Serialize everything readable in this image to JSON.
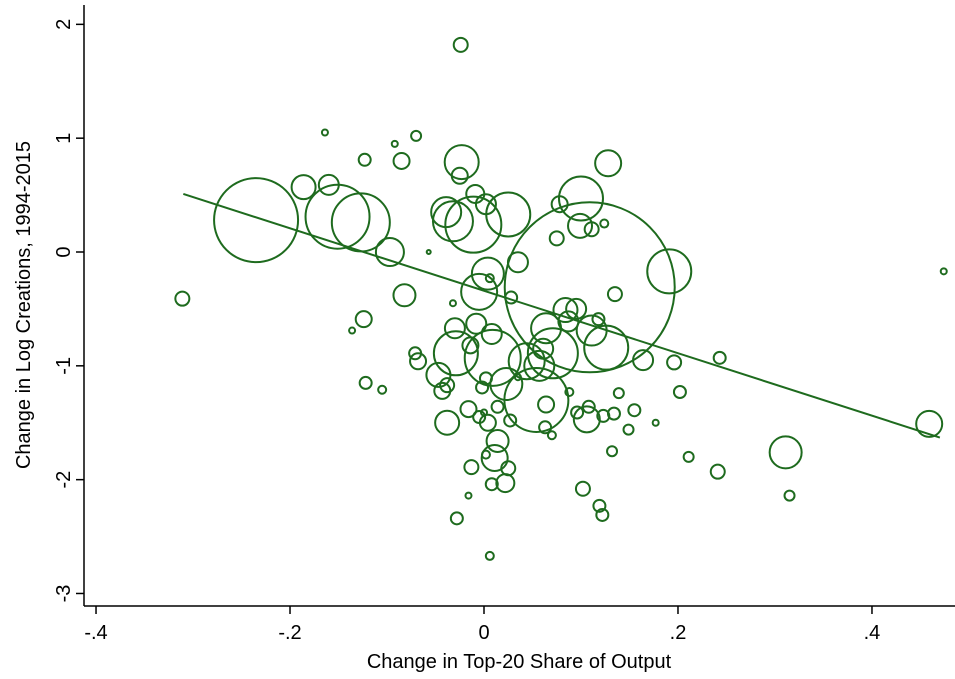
{
  "chart_data": {
    "type": "scatter",
    "xlabel": "Change in Top-20 Share of Output",
    "ylabel": "Change in Log Creations, 1994-2015",
    "color": "#1e6b1e",
    "xlim": [
      -0.4124,
      0.4856
    ],
    "ylim": [
      -3.11,
      2.17
    ],
    "xticks": [
      {
        "value": -0.4,
        "label": "-.4"
      },
      {
        "value": -0.2,
        "label": "-.2"
      },
      {
        "value": 0,
        "label": "0"
      },
      {
        "value": 0.2,
        "label": ".2"
      },
      {
        "value": 0.4,
        "label": ".4"
      }
    ],
    "yticks": [
      -3,
      -2,
      -1,
      0,
      1,
      2
    ],
    "fit": {
      "x": [
        -0.31,
        0.47
      ],
      "y": [
        0.51,
        -1.63
      ]
    },
    "x": [
      -0.024,
      -0.164,
      -0.07,
      -0.092,
      -0.123,
      -0.085,
      -0.023,
      0.128,
      -0.025,
      -0.186,
      -0.16,
      -0.235,
      -0.151,
      -0.127,
      -0.097,
      -0.039,
      -0.011,
      -0.032,
      0.002,
      0.025,
      -0.009,
      0.1,
      0.078,
      0.099,
      0.111,
      0.124,
      0.075,
      0.035,
      -0.057,
      -0.311,
      -0.082,
      -0.005,
      0.004,
      0.006,
      0.028,
      0.109,
      0.191,
      0.135,
      0.474,
      -0.124,
      -0.136,
      -0.032,
      -0.03,
      -0.008,
      0.008,
      -0.029,
      -0.014,
      0.009,
      -0.071,
      -0.068,
      0.061,
      0.064,
      0.057,
      0.044,
      0.071,
      0.084,
      0.095,
      0.111,
      0.126,
      0.087,
      0.118,
      0.164,
      0.196,
      0.243,
      -0.122,
      -0.105,
      -0.047,
      -0.043,
      -0.038,
      -0.002,
      0.002,
      0.023,
      0.054,
      0.035,
      0.064,
      0.088,
      -0.038,
      -0.016,
      0.0,
      -0.005,
      0.004,
      0.014,
      0.027,
      0.063,
      0.07,
      0.096,
      0.106,
      0.108,
      0.123,
      0.134,
      0.139,
      0.155,
      0.149,
      0.177,
      0.202,
      0.132,
      0.014,
      0.011,
      0.002,
      -0.013,
      0.025,
      0.022,
      0.008,
      -0.016,
      -0.028,
      0.006,
      0.102,
      0.119,
      0.122,
      0.211,
      0.241,
      0.311,
      0.315,
      0.459
    ],
    "values": [
      1.82,
      1.05,
      1.02,
      0.95,
      0.81,
      0.8,
      0.79,
      0.78,
      0.67,
      0.57,
      0.59,
      0.28,
      0.31,
      0.26,
      0.0,
      0.35,
      0.24,
      0.27,
      0.42,
      0.33,
      0.51,
      0.47,
      0.42,
      0.23,
      0.2,
      0.25,
      0.12,
      -0.09,
      0.0,
      -0.41,
      -0.38,
      -0.35,
      -0.19,
      -0.23,
      -0.4,
      -0.31,
      -0.17,
      -0.37,
      -0.17,
      -0.59,
      -0.69,
      -0.45,
      -0.67,
      -0.63,
      -0.72,
      -0.89,
      -0.82,
      -0.93,
      -0.89,
      -0.96,
      -0.85,
      -0.67,
      -1.0,
      -0.96,
      -0.89,
      -0.51,
      -0.5,
      -0.69,
      -0.84,
      -0.61,
      -0.59,
      -0.95,
      -0.97,
      -0.93,
      -1.15,
      -1.21,
      -1.08,
      -1.22,
      -1.17,
      -1.19,
      -1.11,
      -1.16,
      -1.3,
      -1.1,
      -1.34,
      -1.23,
      -1.5,
      -1.38,
      -1.41,
      -1.45,
      -1.5,
      -1.36,
      -1.48,
      -1.54,
      -1.61,
      -1.41,
      -1.47,
      -1.36,
      -1.44,
      -1.42,
      -1.24,
      -1.39,
      -1.56,
      -1.5,
      -1.23,
      -1.75,
      -1.66,
      -1.81,
      -1.78,
      -1.89,
      -1.9,
      -2.03,
      -2.04,
      -2.14,
      -2.34,
      -2.67,
      -2.08,
      -2.23,
      -2.31,
      -1.8,
      -1.93,
      -1.76,
      -2.14,
      -1.51
    ],
    "sizes": [
      49,
      9,
      25,
      9,
      36,
      64,
      289,
      169,
      64,
      144,
      100,
      1764,
      1024,
      841,
      196,
      225,
      784,
      400,
      100,
      484,
      81,
      484,
      64,
      144,
      49,
      16,
      49,
      100,
      4,
      49,
      121,
      324,
      256,
      16,
      36,
      7225,
      484,
      49,
      9,
      64,
      9,
      9,
      100,
      100,
      100,
      484,
      64,
      784,
      36,
      64,
      100,
      225,
      225,
      324,
      625,
      144,
      100,
      225,
      484,
      100,
      36,
      100,
      49,
      36,
      36,
      16,
      144,
      64,
      49,
      36,
      36,
      256,
      1024,
      9,
      64,
      16,
      144,
      64,
      9,
      36,
      64,
      36,
      36,
      36,
      16,
      36,
      169,
      36,
      36,
      36,
      25,
      36,
      25,
      9,
      36,
      25,
      121,
      169,
      16,
      49,
      49,
      81,
      36,
      9,
      36,
      16,
      49,
      36,
      36,
      25,
      49,
      256,
      25,
      169
    ]
  }
}
